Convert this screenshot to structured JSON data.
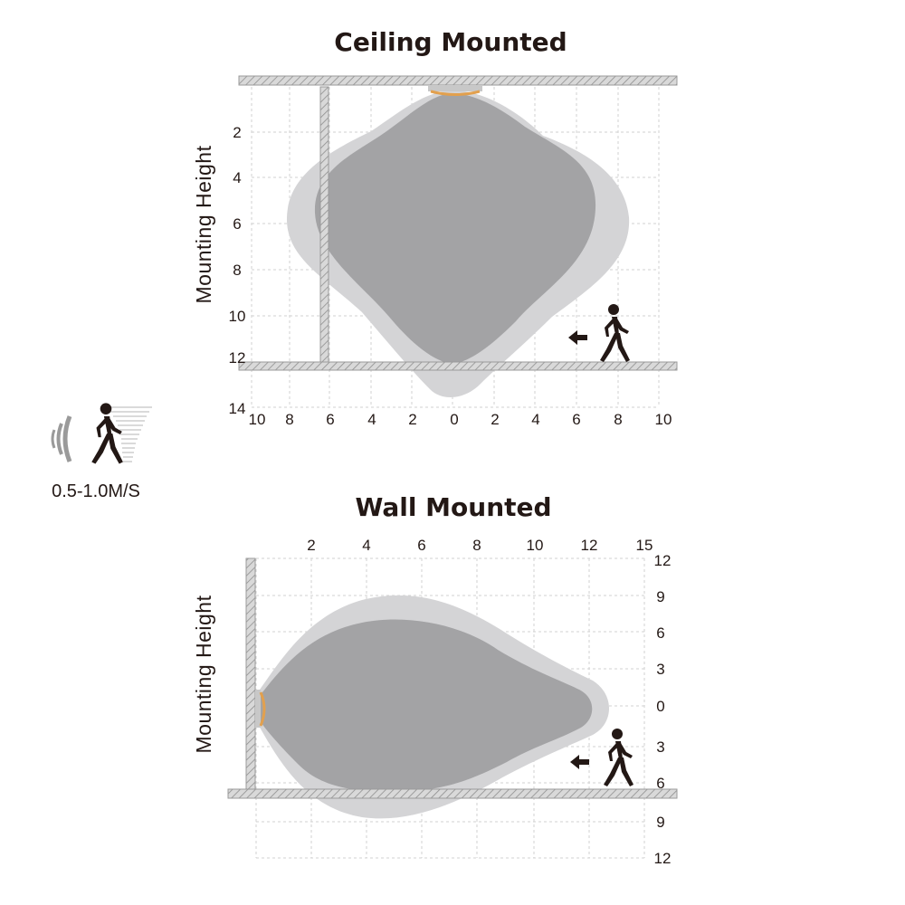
{
  "ceiling": {
    "title": "Ceiling Mounted",
    "y_axis_label": "Mounting Height",
    "y_ticks": [
      "2",
      "4",
      "6",
      "8",
      "10",
      "12",
      "14"
    ],
    "x_ticks": [
      "10",
      "8",
      "6",
      "4",
      "2",
      "0",
      "2",
      "4",
      "6",
      "8",
      "10"
    ]
  },
  "speed": {
    "label": "0.5-1.0M/S"
  },
  "wall": {
    "title": "Wall Mounted",
    "y_axis_label": "Mounting Height",
    "x_ticks": [
      "2",
      "4",
      "6",
      "8",
      "10",
      "12",
      "15"
    ],
    "right_ticks": [
      "12",
      "9",
      "6",
      "3",
      "0",
      "3",
      "6",
      "9",
      "12"
    ]
  },
  "colors": {
    "outer_zone": "#d4d4d6",
    "inner_zone": "#a3a3a5",
    "sensor_lens": "#e2a04e",
    "wall_hatch": "#a8a8a8",
    "text": "#231815"
  },
  "icons": [
    "walking-person-icon",
    "left-arrow-icon",
    "motion-wave-icon",
    "speed-lines-icon"
  ]
}
